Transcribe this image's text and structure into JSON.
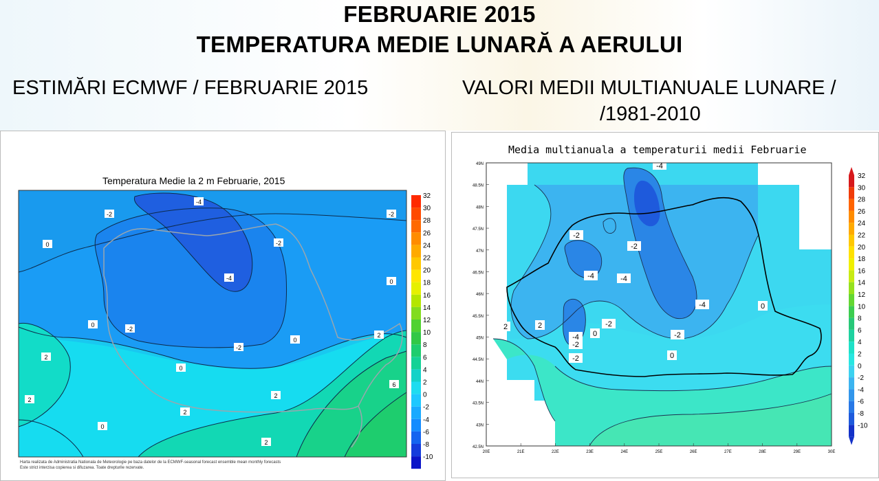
{
  "header": {
    "title_line1": "FEBRUARIE 2015",
    "title_line2": "TEMPERATURA MEDIE LUNARĂ A AERULUI",
    "left_subtitle": "ESTIMĂRI ECMWF / FEBRUARIE 2015",
    "right_subtitle_line1": "VALORI MEDII MULTIANUALE LUNARE /",
    "right_subtitle_line2": "/1981-2010"
  },
  "left_map": {
    "title": "Temperatura Medie la 2 m Februarie, 2015",
    "colorbar_labels": [
      "32",
      "30",
      "28",
      "26",
      "24",
      "22",
      "20",
      "18",
      "16",
      "14",
      "12",
      "10",
      "8",
      "6",
      "4",
      "2",
      "0",
      "-2",
      "-4",
      "-6",
      "-8",
      "-10"
    ],
    "colorbar_colors": [
      "#ff2a00",
      "#ff4a00",
      "#ff6a00",
      "#ff8c00",
      "#ffaa00",
      "#ffc800",
      "#ffe600",
      "#e6f000",
      "#b4e600",
      "#82dc1e",
      "#50d232",
      "#32c846",
      "#1ecd6e",
      "#14d296",
      "#14d2c8",
      "#1edcf0",
      "#1ec8ff",
      "#19aaff",
      "#148cff",
      "#1464f0",
      "#143cdc",
      "#0a14c8"
    ],
    "contour_labels": [
      "-4",
      "-4",
      "-2",
      "-2",
      "-2",
      "-2",
      "-2",
      "0",
      "0",
      "0",
      "0",
      "0",
      "0",
      "2",
      "2",
      "2",
      "2",
      "2",
      "2",
      "6"
    ],
    "credit_line1": "Harta realizata de Administratia Nationala de Meteorologie pe baza datelor de la ECMWF-seasonal forecast ensemble mean monthly forecasts",
    "credit_line2": "Este strict interzisa copierea si difuzarea. Toate drepturile rezervate."
  },
  "right_map": {
    "title": "Media multianuala a temperaturii medii Februarie",
    "lat_labels": [
      "49N",
      "48.5N",
      "48N",
      "47.5N",
      "47N",
      "46.5N",
      "46N",
      "45.5N",
      "45N",
      "44.5N",
      "44N",
      "43.5N",
      "43N",
      "42.5N"
    ],
    "lon_labels": [
      "20E",
      "21E",
      "22E",
      "23E",
      "24E",
      "25E",
      "26E",
      "27E",
      "28E",
      "29E",
      "30E"
    ],
    "colorbar_labels": [
      "32",
      "30",
      "28",
      "26",
      "24",
      "22",
      "20",
      "18",
      "16",
      "14",
      "12",
      "10",
      "8",
      "6",
      "4",
      "2",
      "0",
      "-2",
      "-4",
      "-6",
      "-8",
      "-10"
    ],
    "colorbar_colors": [
      "#d7191c",
      "#f03c0a",
      "#ff6400",
      "#ff8c00",
      "#ffaa00",
      "#ffc800",
      "#ffe100",
      "#f0f000",
      "#c8eb14",
      "#96e11e",
      "#64d732",
      "#3ccd50",
      "#28c878",
      "#1ed2a0",
      "#1ee1c8",
      "#28e6e1",
      "#3cd2f0",
      "#3cb4f0",
      "#3296eb",
      "#2878e6",
      "#1e5adc",
      "#1432c8"
    ],
    "contour_labels": [
      "-4",
      "-2",
      "-4",
      "-2",
      "-2",
      "-4",
      "-4",
      "-2",
      "-2",
      "-2",
      "0",
      "-4",
      "0",
      "0",
      "2",
      "2"
    ]
  }
}
